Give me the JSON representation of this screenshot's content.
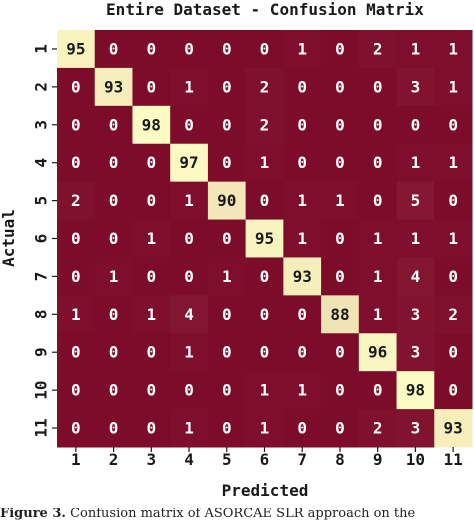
{
  "chart_data": {
    "type": "heatmap",
    "title": "Entire Dataset - Confusion Matrix",
    "xlabel": "Predicted",
    "ylabel": "Actual",
    "x_categories": [
      "1",
      "2",
      "3",
      "4",
      "5",
      "6",
      "7",
      "8",
      "9",
      "10",
      "11"
    ],
    "y_categories": [
      "1",
      "2",
      "3",
      "4",
      "5",
      "6",
      "7",
      "8",
      "9",
      "10",
      "11"
    ],
    "values": [
      [
        95,
        0,
        0,
        0,
        0,
        0,
        1,
        0,
        2,
        1,
        1
      ],
      [
        0,
        93,
        0,
        1,
        0,
        2,
        0,
        0,
        0,
        3,
        1
      ],
      [
        0,
        0,
        98,
        0,
        0,
        2,
        0,
        0,
        0,
        0,
        0
      ],
      [
        0,
        0,
        0,
        97,
        0,
        1,
        0,
        0,
        0,
        1,
        1
      ],
      [
        2,
        0,
        0,
        1,
        90,
        0,
        1,
        1,
        0,
        5,
        0
      ],
      [
        0,
        0,
        1,
        0,
        0,
        95,
        1,
        0,
        1,
        1,
        1
      ],
      [
        0,
        1,
        0,
        0,
        1,
        0,
        93,
        0,
        1,
        4,
        0
      ],
      [
        1,
        0,
        1,
        4,
        0,
        0,
        0,
        88,
        1,
        3,
        2
      ],
      [
        0,
        0,
        0,
        1,
        0,
        0,
        0,
        0,
        96,
        3,
        0
      ],
      [
        0,
        0,
        0,
        0,
        0,
        1,
        1,
        0,
        0,
        98,
        0
      ],
      [
        0,
        0,
        0,
        1,
        0,
        1,
        0,
        0,
        2,
        3,
        93
      ]
    ],
    "colors": {
      "low": "#7d0c2a",
      "high": "#fdfbc4"
    },
    "grid": false,
    "legend": "none"
  },
  "caption": {
    "label": "Figure 3.",
    "text": "Confusion matrix of ASORCAE SLR approach on the"
  }
}
